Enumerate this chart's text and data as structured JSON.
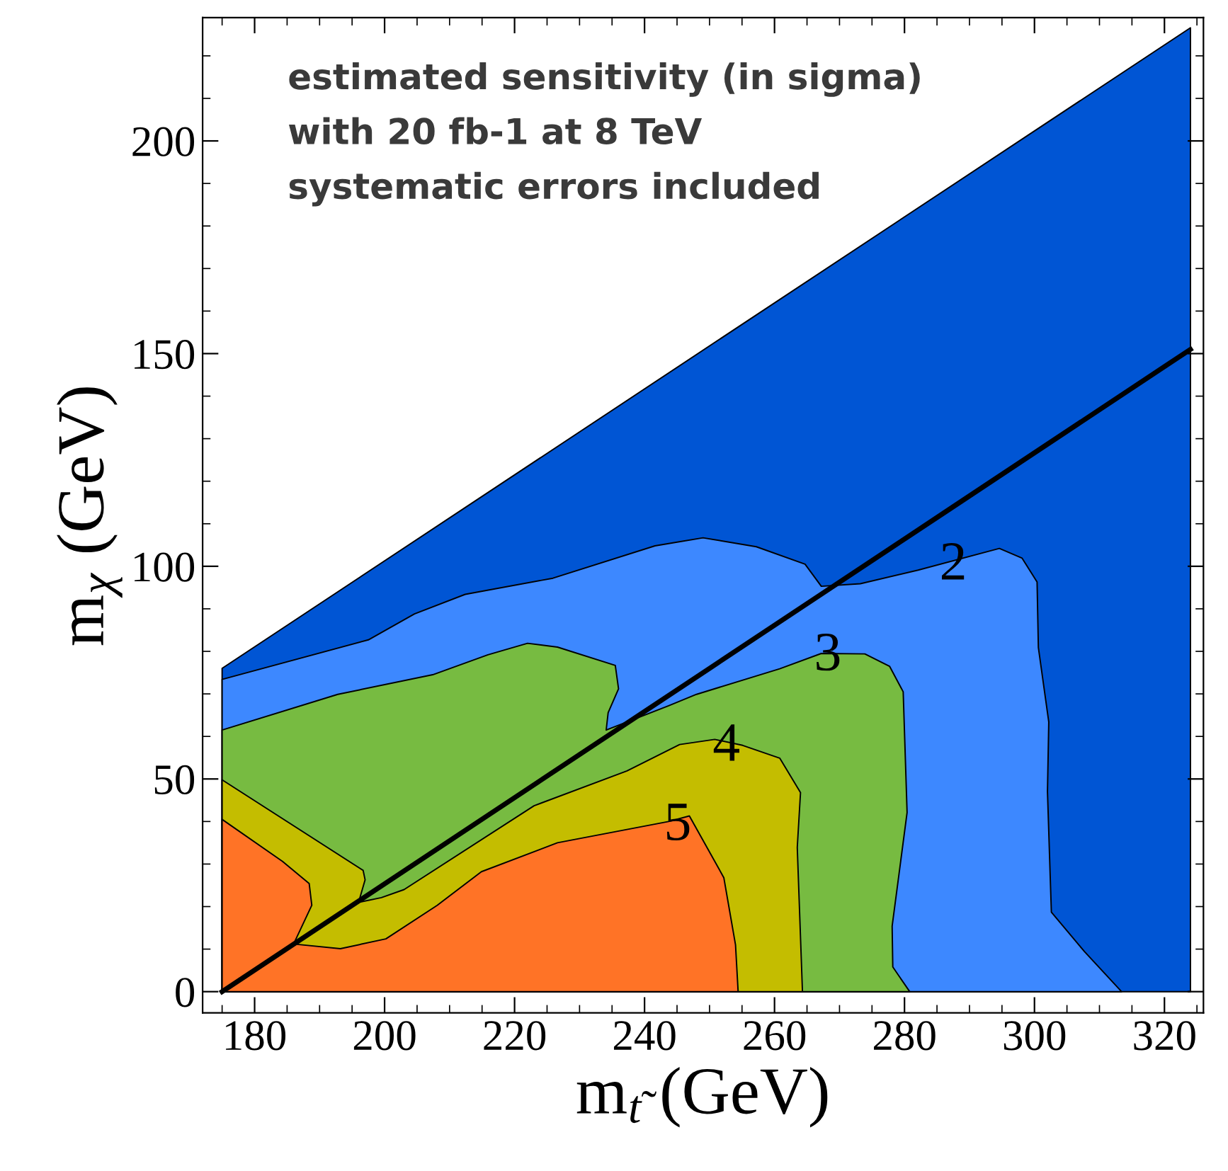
{
  "chart_data": {
    "type": "area",
    "xlabel": "m$_{t̃}$ (GeV)",
    "ylabel": "m$_{χ}$ (GeV)",
    "xlim": [
      172,
      326
    ],
    "ylim": [
      -5,
      229
    ],
    "xticks": [
      180,
      200,
      220,
      240,
      260,
      280,
      300,
      320,
      {
        "value": 175,
        "label": null
      },
      {
        "value": 185,
        "label": null
      },
      {
        "value": 190,
        "label": null
      },
      {
        "value": 195,
        "label": null
      },
      {
        "value": 205,
        "label": null
      },
      {
        "value": 210,
        "label": null
      },
      {
        "value": 215,
        "label": null
      },
      {
        "value": 225,
        "label": null
      },
      {
        "value": 230,
        "label": null
      },
      {
        "value": 235,
        "label": null
      },
      {
        "value": 245,
        "label": null
      },
      {
        "value": 250,
        "label": null
      },
      {
        "value": 255,
        "label": null
      },
      {
        "value": 265,
        "label": null
      },
      {
        "value": 270,
        "label": null
      },
      {
        "value": 275,
        "label": null
      },
      {
        "value": 285,
        "label": null
      },
      {
        "value": 290,
        "label": null
      },
      {
        "value": 295,
        "label": null
      },
      {
        "value": 305,
        "label": null
      },
      {
        "value": 310,
        "label": null
      },
      {
        "value": 315,
        "label": null
      },
      {
        "value": 325,
        "label": null
      }
    ],
    "yticks": [
      0,
      50,
      100,
      150,
      200,
      {
        "value": 10,
        "label": null
      },
      {
        "value": 20,
        "label": null
      },
      {
        "value": 30,
        "label": null
      },
      {
        "value": 40,
        "label": null
      },
      {
        "value": 60,
        "label": null
      },
      {
        "value": 70,
        "label": null
      },
      {
        "value": 80,
        "label": null
      },
      {
        "value": 90,
        "label": null
      },
      {
        "value": 110,
        "label": null
      },
      {
        "value": 120,
        "label": null
      },
      {
        "value": 130,
        "label": null
      },
      {
        "value": 140,
        "label": null
      },
      {
        "value": 160,
        "label": null
      },
      {
        "value": 170,
        "label": null
      },
      {
        "value": 180,
        "label": null
      },
      {
        "value": 190,
        "label": null
      },
      {
        "value": 210,
        "label": null
      },
      {
        "value": 220,
        "label": null
      }
    ],
    "grid": false,
    "legend": false,
    "series": [
      {
        "color": "#0055d4",
        "x": [
          175,
          175,
          324,
          324
        ],
        "values": [
          0,
          76,
          226.6,
          0
        ]
      },
      {
        "color": "#3d88ff",
        "x": [
          175,
          175,
          197.5,
          204.6,
          212.4,
          225.9,
          241.6,
          249,
          257.2,
          264.7,
          267.2,
          273.2,
          282.1,
          294.6,
          298.1,
          300.4,
          300.6,
          302.2,
          302,
          302.6,
          307.7,
          313.4
        ],
        "values": [
          0,
          73.4,
          82.7,
          88.8,
          93.4,
          97.2,
          104.8,
          106.7,
          104.6,
          100.5,
          95.3,
          95.9,
          99.1,
          104.2,
          101.9,
          96.3,
          80.9,
          63.4,
          47,
          18.7,
          9.4,
          0
        ]
      },
      {
        "color": "#77bb41",
        "x": [
          175,
          175,
          192.8,
          207.4,
          215.9,
          222,
          226.6,
          235.5,
          236,
          234.4,
          234.1,
          243.7,
          248,
          260.8,
          267.2,
          273.9,
          277.7,
          279.8,
          280.4,
          278.1,
          278.2,
          280.8
        ],
        "values": [
          0,
          61.5,
          69.9,
          74.5,
          79.2,
          81.9,
          81,
          76.7,
          71.2,
          65.6,
          61.5,
          67.2,
          69.9,
          75.9,
          79.5,
          79.4,
          76.5,
          70.5,
          42.1,
          15.4,
          5.8,
          0
        ]
      },
      {
        "color": "#c4bd00",
        "x": [
          175,
          175,
          196.7,
          197,
          196,
          199.5,
          203,
          223,
          237.3,
          245.4,
          250.8,
          255.1,
          260.8,
          264,
          263.5,
          264.3
        ],
        "values": [
          0,
          49.8,
          28.5,
          26.3,
          21,
          22.1,
          24,
          43.7,
          51.9,
          58.1,
          59.3,
          57.9,
          54.9,
          46.8,
          33.9,
          0
        ]
      },
      {
        "color": "#ff7326",
        "x": [
          175,
          175,
          184.3,
          188.4,
          188.8,
          186,
          193.2,
          200.2,
          208.1,
          214.9,
          226.6,
          243.7,
          246.9,
          252.2,
          254,
          254.4
        ],
        "values": [
          0,
          40.5,
          30.6,
          25.4,
          20.3,
          11.2,
          10.1,
          12.4,
          20.3,
          28.2,
          35,
          40,
          41.3,
          26.8,
          11,
          0
        ]
      },
      {
        "type": "line",
        "color": "#000000",
        "x": [
          175,
          212,
          250,
          287,
          324
        ],
        "values": [
          0,
          37.5,
          76,
          113.5,
          151
        ]
      }
    ],
    "annotations": [
      "estimated sensitivity (in sigma)",
      "with 20 fb-1 at 8 TeV",
      "systematic errors included",
      {
        "text": "2",
        "x": 287.5,
        "y": 100
      },
      {
        "text": "3",
        "x": 268.2,
        "y": 78.7
      },
      {
        "text": "4",
        "x": 252.6,
        "y": 57.4
      },
      {
        "text": "5",
        "x": 245.1,
        "y": 38.8
      }
    ]
  }
}
